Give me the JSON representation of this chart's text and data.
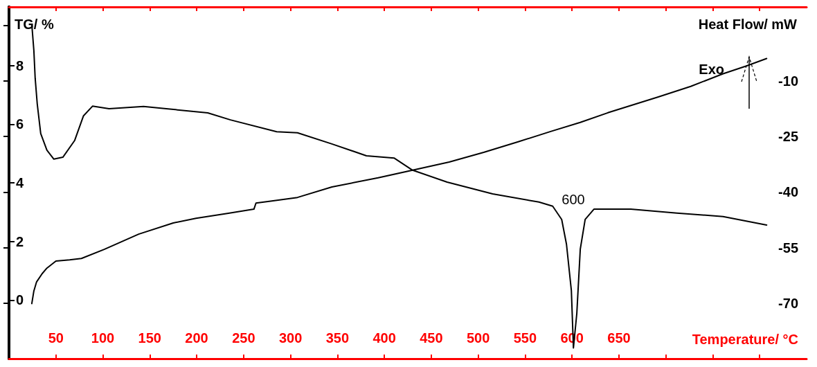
{
  "chart_data": {
    "type": "line",
    "xlabel": "Temperature/ °C",
    "ylabel": "TG/ %",
    "y2label": "Heat Flow/ mW",
    "annotations": [
      "600",
      "Exo"
    ],
    "xlim": [
      0,
      850
    ],
    "xticks": [
      50,
      100,
      150,
      200,
      250,
      300,
      350,
      400,
      450,
      500,
      550,
      600,
      650,
      {
        "value": 700,
        "label": null
      },
      {
        "value": 750,
        "label": null
      },
      {
        "value": 800,
        "label": null
      }
    ],
    "ylim": [
      -2,
      10
    ],
    "yticks": [
      0,
      2,
      4,
      6,
      8
    ],
    "y2lim": [
      -85,
      10
    ],
    "y2ticks": [
      -70,
      -55,
      -40,
      -25,
      -10,
      {
        "value": 5,
        "label": null
      }
    ],
    "grid": false,
    "marker": "none",
    "line_style": "solid",
    "series": [
      {
        "color": "#000000",
        "axis": "y",
        "x": [
          24.3,
          26.5,
          29.4,
          35.3,
          40.4,
          50,
          64.7,
          77.2,
          101.5,
          138.2,
          175,
          199.3,
          233.8,
          261,
          263.2,
          280.1,
          307.4,
          344.1,
          393.4,
          430.1,
          469.1,
          505.9,
          542.6,
          577.2,
          608.8,
          638.2,
          691.9,
          726.5,
          761,
          785.3,
          807.4
        ],
        "values": [
          -0.12,
          0.31,
          0.62,
          0.9,
          1.09,
          1.33,
          1.37,
          1.42,
          1.73,
          2.25,
          2.63,
          2.79,
          2.96,
          3.1,
          3.31,
          3.38,
          3.5,
          3.86,
          4.17,
          4.43,
          4.71,
          5.04,
          5.4,
          5.75,
          6.06,
          6.39,
          6.93,
          7.29,
          7.72,
          7.98,
          8.24
        ]
      },
      {
        "color": "#000000",
        "axis": "y2",
        "x": [
          24.3,
          26.5,
          27.9,
          30.1,
          33.8,
          40.4,
          47.8,
          57.4,
          69.9,
          79.4,
          89,
          106.6,
          143.4,
          167.6,
          211.8,
          236,
          285.3,
          307.4,
          344.1,
          380.9,
          410.3,
          430.1,
          466.9,
          515.4,
          564.7,
          579.4,
          589,
          594.1,
          599.3,
          601.5,
          605.1,
          608.8,
          614,
          623.5,
          662.5,
          711.8,
          761,
          807.4
        ],
        "values": [
          5.3,
          -1.8,
          -9.3,
          -16.2,
          -24.2,
          -28.7,
          -31.1,
          -30.6,
          -26.1,
          -19.4,
          -16.8,
          -17.5,
          -16.9,
          -17.5,
          -18.6,
          -20.5,
          -23.7,
          -24,
          -27,
          -30.2,
          -30.8,
          -34.1,
          -37.3,
          -40.5,
          -42.7,
          -43.8,
          -47.4,
          -54.1,
          -66.6,
          -82.1,
          -72.8,
          -55.4,
          -47.4,
          -44.6,
          -44.6,
          -45.7,
          -46.6,
          -48.9
        ]
      }
    ]
  }
}
